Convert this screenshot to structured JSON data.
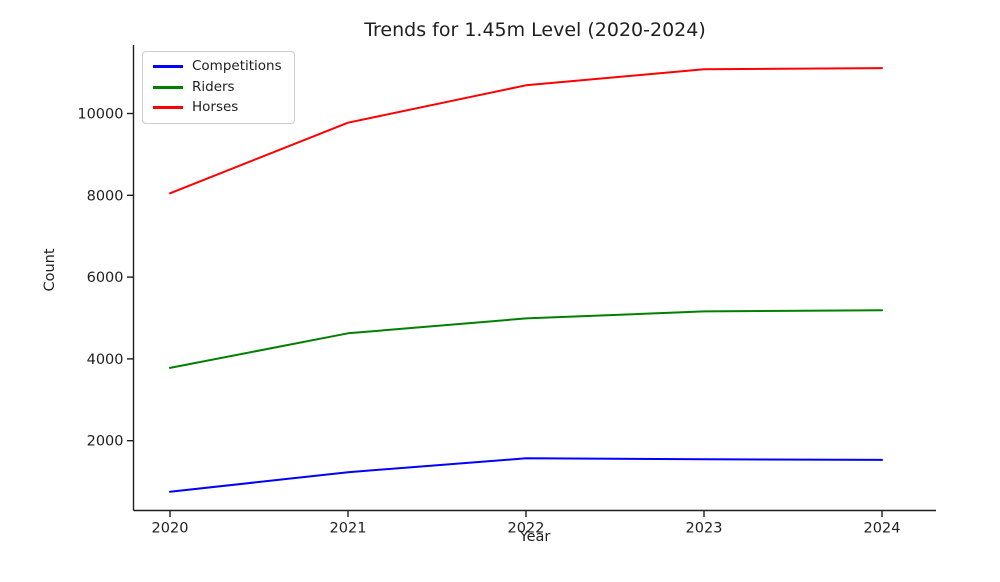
{
  "chart_data": {
    "type": "line",
    "title": "Trends for 1.45m Level (2020-2024)",
    "xlabel": "Year",
    "ylabel": "Count",
    "x": [
      2020,
      2021,
      2022,
      2023,
      2024
    ],
    "series": [
      {
        "name": "Competitions",
        "color": "#0000ff",
        "values": [
          750,
          1230,
          1570,
          1545,
          1530
        ]
      },
      {
        "name": "Riders",
        "color": "#008000",
        "values": [
          3780,
          4625,
          4990,
          5160,
          5190
        ]
      },
      {
        "name": "Horses",
        "color": "#ff0000",
        "values": [
          8050,
          9775,
          10690,
          11080,
          11110
        ]
      }
    ],
    "yticks": [
      2000,
      4000,
      6000,
      8000,
      10000
    ],
    "xticks": [
      "2020",
      "2021",
      "2022",
      "2023",
      "2024"
    ],
    "ylim": [
      293,
      11675
    ],
    "legend_position": "upper-left",
    "grid": false,
    "axis_color": "#1f1f1f"
  }
}
